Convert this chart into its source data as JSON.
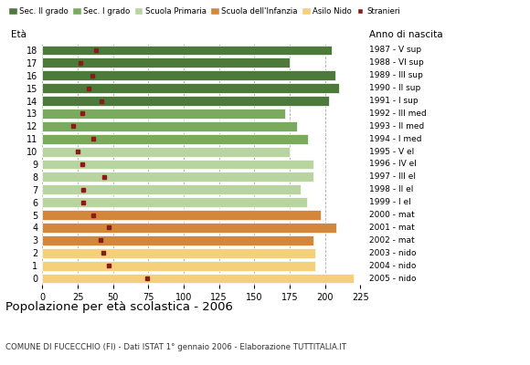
{
  "ages": [
    0,
    1,
    2,
    3,
    4,
    5,
    6,
    7,
    8,
    9,
    10,
    11,
    12,
    13,
    14,
    15,
    16,
    17,
    18
  ],
  "bar_values": [
    220,
    193,
    193,
    192,
    208,
    197,
    187,
    183,
    192,
    192,
    175,
    188,
    180,
    172,
    203,
    210,
    207,
    175,
    205
  ],
  "stranieri": [
    74,
    47,
    43,
    41,
    47,
    36,
    29,
    29,
    44,
    28,
    25,
    36,
    22,
    28,
    42,
    33,
    35,
    27,
    38
  ],
  "bar_colors": [
    "#f5d07a",
    "#f5d07a",
    "#f5d07a",
    "#d4863a",
    "#d4863a",
    "#d4863a",
    "#b8d4a0",
    "#b8d4a0",
    "#b8d4a0",
    "#b8d4a0",
    "#b8d4a0",
    "#7aaa5e",
    "#7aaa5e",
    "#7aaa5e",
    "#4d7a3b",
    "#4d7a3b",
    "#4d7a3b",
    "#4d7a3b",
    "#4d7a3b"
  ],
  "anno_nascita": [
    "2005 - nido",
    "2004 - nido",
    "2003 - nido",
    "2002 - mat",
    "2001 - mat",
    "2000 - mat",
    "1999 - I el",
    "1998 - II el",
    "1997 - III el",
    "1996 - IV el",
    "1995 - V el",
    "1994 - I med",
    "1993 - II med",
    "1992 - III med",
    "1991 - I sup",
    "1990 - II sup",
    "1989 - III sup",
    "1988 - VI sup",
    "1987 - V sup"
  ],
  "legend_labels": [
    "Sec. II grado",
    "Sec. I grado",
    "Scuola Primaria",
    "Scuola dell'Infanzia",
    "Asilo Nido",
    "Stranieri"
  ],
  "legend_colors": [
    "#4d7a3b",
    "#7aaa5e",
    "#b8d4a0",
    "#d4863a",
    "#f5d07a",
    "#8b1a1a"
  ],
  "title": "Popolazione per età scolastica - 2006",
  "subtitle": "COMUNE DI FUCECCHIO (FI) - Dati ISTAT 1° gennaio 2006 - Elaborazione TUTTITALIA.IT",
  "xlabel_eta": "Età",
  "xlabel_anno": "Anno di nascita",
  "xlim": [
    0,
    225
  ],
  "xticks": [
    0,
    25,
    50,
    75,
    100,
    125,
    150,
    175,
    200,
    225
  ],
  "stranieri_color": "#8b1a1a",
  "background_color": "#ffffff"
}
